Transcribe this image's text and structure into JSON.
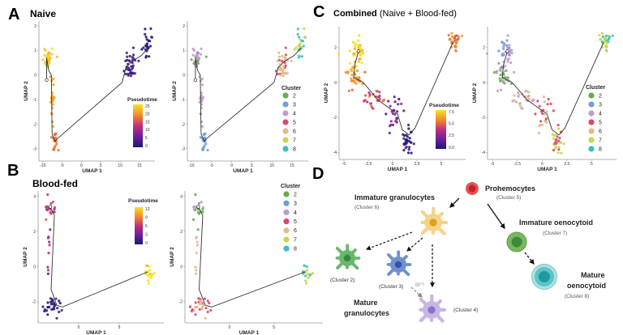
{
  "panels": {
    "A": {
      "letter": "A",
      "title": "Naive"
    },
    "B": {
      "letter": "B",
      "title": "Blood-fed"
    },
    "C": {
      "letter": "C",
      "title_bold": "Combined",
      "title_rest": " (Naive + Blood-fed)"
    },
    "D": {
      "letter": "D"
    }
  },
  "colors": {
    "clusters": {
      "2": "#63ad4e",
      "3": "#6e9fd8",
      "4": "#c29bd2",
      "5": "#d9476a",
      "6": "#e1b98c",
      "7": "#c8d64a",
      "8": "#3bbfc9"
    },
    "pseudotime_scale": [
      "#1d1a6e",
      "#6a1fa0",
      "#c2307a",
      "#f28a2a",
      "#f6e428"
    ]
  },
  "chart_data": [
    {
      "id": "A",
      "type": "scatter",
      "xlabel": "UMAP 1",
      "ylabel": "UMAP 2",
      "xlim": [
        -11,
        19
      ],
      "ylim": [
        -3.5,
        2.2
      ],
      "xticks": [
        -10,
        -5,
        0,
        5,
        10,
        15
      ],
      "yticks": [
        -3,
        -2,
        -1,
        0,
        1,
        2
      ],
      "pseudotime_legend": {
        "title": "Pseudotime",
        "ticks": [
          "25",
          "20",
          "15",
          "10",
          "5",
          "0"
        ],
        "max": 27
      },
      "cluster_legend": {
        "title": "Cluster",
        "items": [
          "2",
          "3",
          "4",
          "5",
          "6",
          "7",
          "8"
        ]
      },
      "groups": [
        {
          "x": -8.5,
          "y": 0.65,
          "sx": 0.7,
          "sy": 0.3,
          "n": 32,
          "pseudotime": 25,
          "clusters": [
            "2",
            "4",
            "4"
          ]
        },
        {
          "x": -7.6,
          "y": -1.0,
          "sx": 0.35,
          "sy": 0.7,
          "n": 22,
          "pseudotime": 22,
          "clusters": [
            "4"
          ]
        },
        {
          "x": -6.8,
          "y": -2.7,
          "sx": 0.45,
          "sy": 0.3,
          "n": 26,
          "pseudotime": 19,
          "clusters": [
            "3"
          ]
        },
        {
          "x": 12.5,
          "y": 0.4,
          "sx": 1.2,
          "sy": 0.35,
          "n": 36,
          "pseudotime": 3,
          "clusters": [
            "6",
            "5",
            "6"
          ]
        },
        {
          "x": 17.0,
          "y": 1.3,
          "sx": 0.5,
          "sy": 0.35,
          "n": 26,
          "pseudotime": 1,
          "clusters": [
            "7",
            "8"
          ]
        }
      ],
      "trajectory": [
        [
          -9,
          -0.2
        ],
        [
          -9,
          0.7
        ],
        [
          -8.5,
          0.2
        ],
        [
          -7.8,
          0
        ],
        [
          -7.6,
          -2.4
        ],
        [
          -6.8,
          -2.7
        ],
        [
          -6.3,
          -2.6
        ],
        [
          10.5,
          -0.3
        ],
        [
          11.5,
          0.3
        ],
        [
          13,
          0.55
        ],
        [
          15.5,
          0.8
        ],
        [
          17.2,
          1.1
        ]
      ]
    },
    {
      "id": "B",
      "type": "scatter",
      "xlabel": "UMAP 1",
      "ylabel": "UMAP 2",
      "xlim": [
        -5,
        10.5
      ],
      "ylim": [
        -3.2,
        4.3
      ],
      "xticks": [
        0,
        5
      ],
      "yticks": [
        -2,
        0,
        2,
        4
      ],
      "pseudotime_legend": {
        "title": "Pseudotime",
        "ticks": [
          "12",
          "9",
          "6",
          "3",
          "0"
        ],
        "max": 12
      },
      "cluster_legend": {
        "title": "Cluster",
        "items": [
          "2",
          "3",
          "4",
          "5",
          "6",
          "7",
          "8"
        ]
      },
      "groups": [
        {
          "x": -3.5,
          "y": 3.3,
          "sx": 0.5,
          "sy": 0.35,
          "n": 18,
          "pseudotime": 6,
          "clusters": [
            "2",
            "2",
            "4"
          ]
        },
        {
          "x": -3.6,
          "y": 0.5,
          "sx": 0.2,
          "sy": 1.0,
          "n": 8,
          "pseudotime": 5,
          "clusters": [
            "6"
          ]
        },
        {
          "x": -3.5,
          "y": -2.2,
          "sx": 0.9,
          "sy": 0.4,
          "n": 30,
          "pseudotime": 0.5,
          "clusters": [
            "6",
            "5"
          ]
        },
        {
          "x": 8.7,
          "y": -0.4,
          "sx": 0.4,
          "sy": 0.35,
          "n": 18,
          "pseudotime": 12,
          "clusters": [
            "7",
            "8"
          ]
        }
      ],
      "trajectory": [
        [
          -3.5,
          3.4
        ],
        [
          -3,
          2.9
        ],
        [
          -3.4,
          -1.3
        ],
        [
          -2.7,
          -2.2
        ],
        [
          -2,
          -2.3
        ],
        [
          8.5,
          -0.3
        ]
      ]
    },
    {
      "id": "C",
      "type": "scatter",
      "xlabel": "UMAP 1",
      "ylabel": "UMAP 2",
      "xlim": [
        -5.5,
        7.5
      ],
      "ylim": [
        -4.4,
        3.2
      ],
      "xticks": [
        -5,
        -2.5,
        0,
        2.5,
        5
      ],
      "yticks": [
        -4,
        -2,
        0,
        2
      ],
      "pseudotime_legend": {
        "title": "Pseudotime",
        "ticks": [
          "7.5",
          "5.0",
          "2.5",
          "0.0"
        ],
        "max": 9
      },
      "cluster_legend": {
        "title": "Cluster",
        "items": [
          "2",
          "3",
          "4",
          "5",
          "6",
          "7",
          "8"
        ]
      },
      "groups": [
        {
          "x": -3.6,
          "y": 1.8,
          "sx": 0.6,
          "sy": 0.5,
          "n": 35,
          "pseudotime": 8.7,
          "clusters": [
            "3",
            "4"
          ]
        },
        {
          "x": -4.0,
          "y": 0.3,
          "sx": 0.6,
          "sy": 0.45,
          "n": 35,
          "pseudotime": 7,
          "clusters": [
            "2",
            "4"
          ]
        },
        {
          "x": -1.8,
          "y": -0.9,
          "sx": 0.8,
          "sy": 0.4,
          "n": 25,
          "pseudotime": 5,
          "clusters": [
            "4",
            "6"
          ]
        },
        {
          "x": 0.3,
          "y": -1.9,
          "sx": 0.5,
          "sy": 0.6,
          "n": 25,
          "pseudotime": 2.5,
          "clusters": [
            "6",
            "5"
          ]
        },
        {
          "x": 1.5,
          "y": -3.3,
          "sx": 0.4,
          "sy": 0.4,
          "n": 30,
          "pseudotime": 0.3,
          "clusters": [
            "5",
            "7"
          ]
        },
        {
          "x": 6.3,
          "y": 2.4,
          "sx": 0.35,
          "sy": 0.3,
          "n": 30,
          "pseudotime": 6.5,
          "clusters": [
            "8",
            "7"
          ]
        }
      ],
      "trajectory": [
        [
          -3.5,
          1.8
        ],
        [
          -3.9,
          1
        ],
        [
          -4,
          0.3
        ],
        [
          -3,
          0
        ],
        [
          -1.5,
          -1
        ],
        [
          -0.5,
          -1.4
        ],
        [
          0.5,
          -1.8
        ],
        [
          1,
          -2.7
        ],
        [
          1.7,
          -3
        ],
        [
          2.3,
          -2.6
        ],
        [
          6.2,
          2.3
        ]
      ]
    }
  ],
  "diagram": {
    "prohemocytes": {
      "name": "Prohemocytes",
      "cluster": "(Cluster 5)"
    },
    "immature_granulocytes": {
      "name": "Immature granulocytes",
      "cluster": "(Cluster 6)"
    },
    "immature_oenocytoid": {
      "name": "Immature oenocytoid",
      "cluster": "(Cluster 7)"
    },
    "mature_oenocytoid": {
      "name1": "Mature",
      "name2": "oenocytoid",
      "cluster": "(Cluster 8)"
    },
    "mature_granulocytes": {
      "name1": "Mature",
      "name2": "granulocytes"
    },
    "cluster2": "(Cluster 2)",
    "cluster3": "(Cluster 3)",
    "cluster4": "(Cluster 4)",
    "bf_label": "BF?"
  }
}
